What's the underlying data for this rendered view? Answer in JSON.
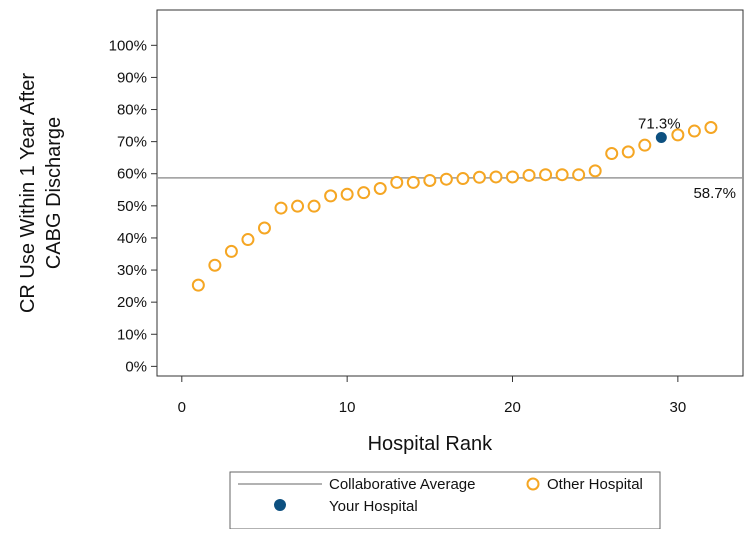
{
  "chart_data": {
    "type": "scatter",
    "xlabel": "Hospital Rank",
    "ylabel_lines": [
      "CR Use Within 1 Year After",
      "CABG Discharge"
    ],
    "xlim": [
      -1.5,
      34
    ],
    "ylim": [
      -3,
      111
    ],
    "x_ticks": [
      0,
      10,
      20,
      30
    ],
    "x_tick_labels": [
      "0",
      "10",
      "20",
      "30"
    ],
    "y_ticks": [
      0,
      10,
      20,
      30,
      40,
      50,
      60,
      70,
      80,
      90,
      100
    ],
    "y_tick_labels": [
      "0%",
      "10%",
      "20%",
      "30%",
      "40%",
      "50%",
      "60%",
      "70%",
      "80%",
      "90%",
      "100%"
    ],
    "reference_line": {
      "name": "Collaborative Average",
      "y": 58.7,
      "label": "58.7%",
      "color": "#999999"
    },
    "series": [
      {
        "name": "Other Hospital",
        "marker": "hollow-circle",
        "color": "#f5a623",
        "x": [
          1,
          2,
          3,
          4,
          5,
          6,
          7,
          8,
          9,
          10,
          11,
          12,
          13,
          14,
          15,
          16,
          17,
          18,
          19,
          20,
          21,
          22,
          23,
          24,
          25,
          26,
          27,
          28,
          30,
          31,
          32
        ],
        "y": [
          25.3,
          31.5,
          35.8,
          39.5,
          43.1,
          49.3,
          49.9,
          49.9,
          53.1,
          53.6,
          54.1,
          55.4,
          57.3,
          57.3,
          57.9,
          58.3,
          58.5,
          58.9,
          59.0,
          59.0,
          59.5,
          59.7,
          59.7,
          59.7,
          60.9,
          66.3,
          66.8,
          68.9,
          72.1,
          73.3,
          74.4
        ]
      },
      {
        "name": "Your Hospital",
        "marker": "filled-circle",
        "color": "#0d5080",
        "x": [
          29
        ],
        "y": [
          71.3
        ],
        "label": "71.3%"
      }
    ],
    "legend": {
      "placement": "bottom",
      "items": [
        {
          "label": "Collaborative Average",
          "symbol": "line"
        },
        {
          "label": "Other Hospital",
          "symbol": "hollow-circle"
        },
        {
          "label": "Your Hospital",
          "symbol": "filled-circle"
        }
      ]
    },
    "grid": false
  }
}
